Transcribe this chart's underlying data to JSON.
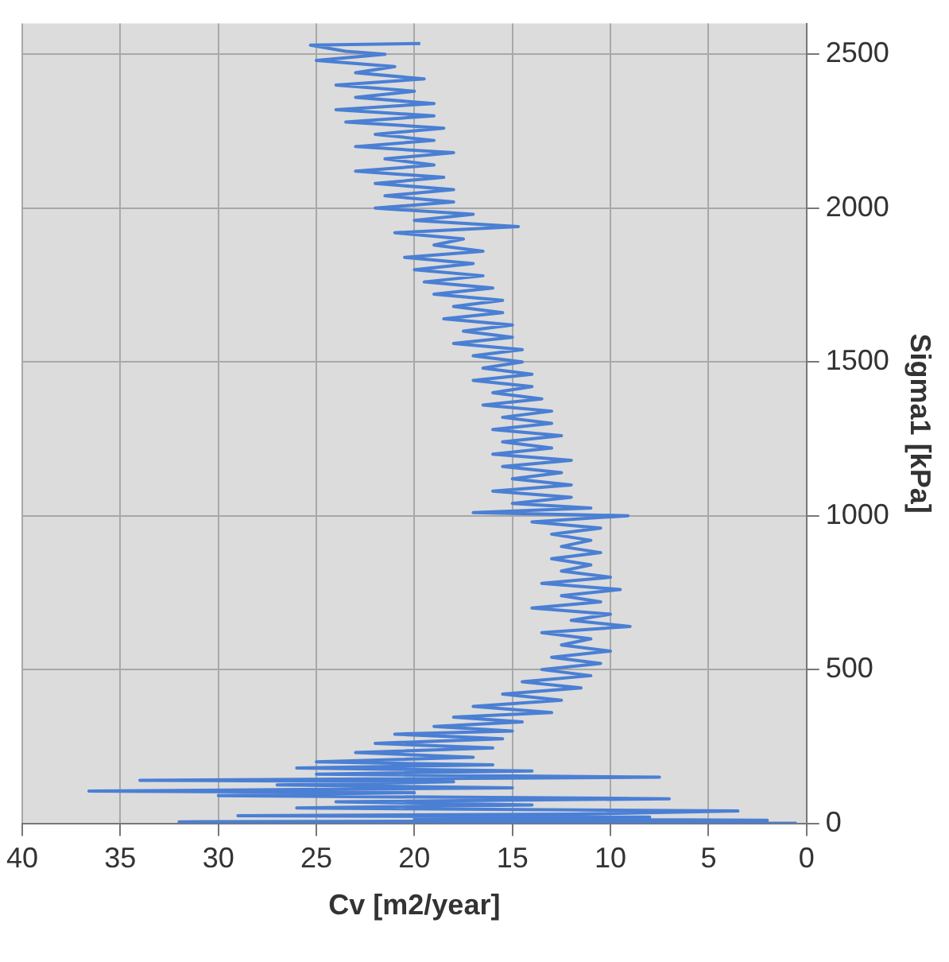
{
  "chart_data": {
    "type": "line",
    "xlabel": "Cv [m2/year]",
    "y2label": "Sigma1 [kPa]",
    "xlim": [
      40,
      0
    ],
    "xticks": [
      40,
      35,
      30,
      25,
      20,
      15,
      10,
      5,
      0
    ],
    "y2lim": [
      0,
      2600
    ],
    "y2ticks": [
      0,
      500,
      1000,
      1500,
      2000,
      2500
    ],
    "grid": true,
    "marker": "none",
    "line_style": "solid",
    "series": [
      {
        "color": "#4a7fd4",
        "axis": "y2",
        "values": [
          0,
          5,
          10,
          15,
          20,
          25,
          30,
          40,
          50,
          60,
          70,
          80,
          90,
          100,
          105,
          115,
          125,
          135,
          140,
          150,
          160,
          170,
          180,
          190,
          200,
          215,
          230,
          245,
          260,
          275,
          290,
          300,
          315,
          330,
          345,
          360,
          380,
          400,
          420,
          440,
          460,
          480,
          500,
          520,
          540,
          560,
          580,
          600,
          620,
          640,
          660,
          680,
          700,
          720,
          740,
          760,
          780,
          800,
          820,
          840,
          860,
          880,
          900,
          920,
          940,
          960,
          980,
          1000,
          1010,
          1025,
          1040,
          1060,
          1080,
          1100,
          1120,
          1140,
          1160,
          1180,
          1200,
          1220,
          1240,
          1260,
          1280,
          1300,
          1320,
          1340,
          1360,
          1380,
          1400,
          1420,
          1440,
          1460,
          1480,
          1500,
          1520,
          1540,
          1560,
          1580,
          1600,
          1620,
          1640,
          1660,
          1680,
          1700,
          1720,
          1740,
          1760,
          1780,
          1800,
          1820,
          1840,
          1860,
          1880,
          1900,
          1920,
          1940,
          1960,
          1980,
          2000,
          2020,
          2040,
          2060,
          2080,
          2100,
          2120,
          2140,
          2160,
          2180,
          2200,
          2220,
          2240,
          2260,
          2280,
          2300,
          2320,
          2340,
          2360,
          2380,
          2400,
          2420,
          2440,
          2460,
          2480,
          2500,
          2510,
          2530,
          2535
        ],
        "x": [
          0.5,
          32,
          2,
          20,
          8,
          29,
          12,
          3.5,
          26,
          14,
          24,
          7,
          30,
          20,
          36.6,
          15,
          27,
          18,
          34,
          7.5,
          25,
          14,
          26,
          16,
          25,
          17,
          23,
          16,
          22,
          15.5,
          21,
          15,
          19,
          14.5,
          18,
          13,
          17,
          12.5,
          15.5,
          11.5,
          14.5,
          11,
          13.5,
          10.5,
          13,
          10,
          12.5,
          11,
          13.5,
          9,
          12,
          10,
          14,
          10.5,
          12.5,
          9.5,
          13.5,
          10,
          12.5,
          11,
          13,
          10.5,
          12.5,
          11,
          13,
          10.5,
          14,
          9.1,
          17,
          11,
          15,
          12,
          16,
          12,
          15,
          12.5,
          15.5,
          12,
          16,
          13,
          15.5,
          12.5,
          16,
          13,
          15.5,
          13,
          16.5,
          13.5,
          16,
          14,
          17,
          14,
          16.5,
          14.5,
          17,
          14.5,
          18,
          15,
          17.5,
          15,
          18.5,
          15.5,
          18,
          15.5,
          19,
          16,
          19.5,
          16.5,
          20,
          17,
          20.5,
          16.5,
          19,
          17.5,
          21,
          14.7,
          20,
          17,
          22,
          18,
          21.5,
          18,
          22,
          18.5,
          23,
          19,
          21.5,
          18,
          23,
          19,
          22,
          18.5,
          23.5,
          19,
          24,
          19,
          23,
          20,
          24,
          19.5,
          23,
          21,
          25,
          21.5,
          23.5,
          25.3,
          19.7
        ]
      }
    ]
  }
}
